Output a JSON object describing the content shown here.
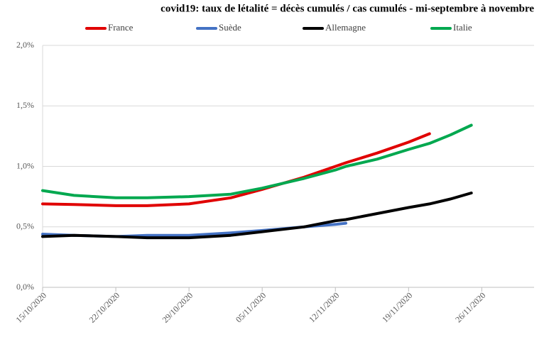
{
  "chart_data": {
    "type": "line",
    "title": "covid19: taux de létalité = décès cumulés / cas cumulés - mi-septembre à novembre",
    "x": [
      "2020-10-15",
      "2020-10-18",
      "2020-10-22",
      "2020-10-25",
      "2020-10-29",
      "2020-11-02",
      "2020-11-05",
      "2020-11-09",
      "2020-11-12",
      "2020-11-13",
      "2020-11-16",
      "2020-11-19",
      "2020-11-21",
      "2020-11-23",
      "2020-11-25"
    ],
    "series": [
      {
        "name": "France",
        "color": "#e00000",
        "values": [
          0.69,
          0.685,
          0.675,
          0.675,
          0.69,
          0.74,
          0.81,
          0.91,
          1.0,
          1.03,
          1.11,
          1.2,
          1.27,
          null,
          null
        ]
      },
      {
        "name": "Suède",
        "color": "#4472c4",
        "values": [
          0.44,
          0.43,
          0.42,
          0.43,
          0.43,
          0.45,
          0.47,
          0.5,
          0.52,
          0.53,
          null,
          null,
          null,
          null,
          null
        ]
      },
      {
        "name": "Allemagne",
        "color": "#000000",
        "values": [
          0.42,
          0.43,
          0.42,
          0.41,
          0.41,
          0.43,
          0.46,
          0.5,
          0.55,
          0.56,
          0.61,
          0.66,
          0.69,
          0.73,
          0.78
        ]
      },
      {
        "name": "Italie",
        "color": "#00a84f",
        "values": [
          0.8,
          0.76,
          0.74,
          0.74,
          0.75,
          0.77,
          0.82,
          0.9,
          0.97,
          1.0,
          1.06,
          1.14,
          1.19,
          1.26,
          1.34
        ]
      }
    ],
    "xlim": [
      "2020-10-15",
      "2020-12-01"
    ],
    "xticks": [
      {
        "value": "2020-10-15",
        "label": "15/10/2020"
      },
      {
        "value": "2020-10-22",
        "label": "22/10/2020"
      },
      {
        "value": "2020-10-29",
        "label": "29/10/2020"
      },
      {
        "value": "2020-11-05",
        "label": "05/11/2020"
      },
      {
        "value": "2020-11-12",
        "label": "12/11/2020"
      },
      {
        "value": "2020-11-19",
        "label": "19/11/2020"
      },
      {
        "value": "2020-11-26",
        "label": "26/11/2020"
      }
    ],
    "ylim": [
      0,
      2
    ],
    "yticks": [
      {
        "value": 0,
        "label": "0,0%"
      },
      {
        "value": 0.5,
        "label": "0,5%"
      },
      {
        "value": 1,
        "label": "1,0%"
      },
      {
        "value": 1.5,
        "label": "1,5%"
      },
      {
        "value": 2,
        "label": "2,0%"
      }
    ],
    "grid": true
  }
}
